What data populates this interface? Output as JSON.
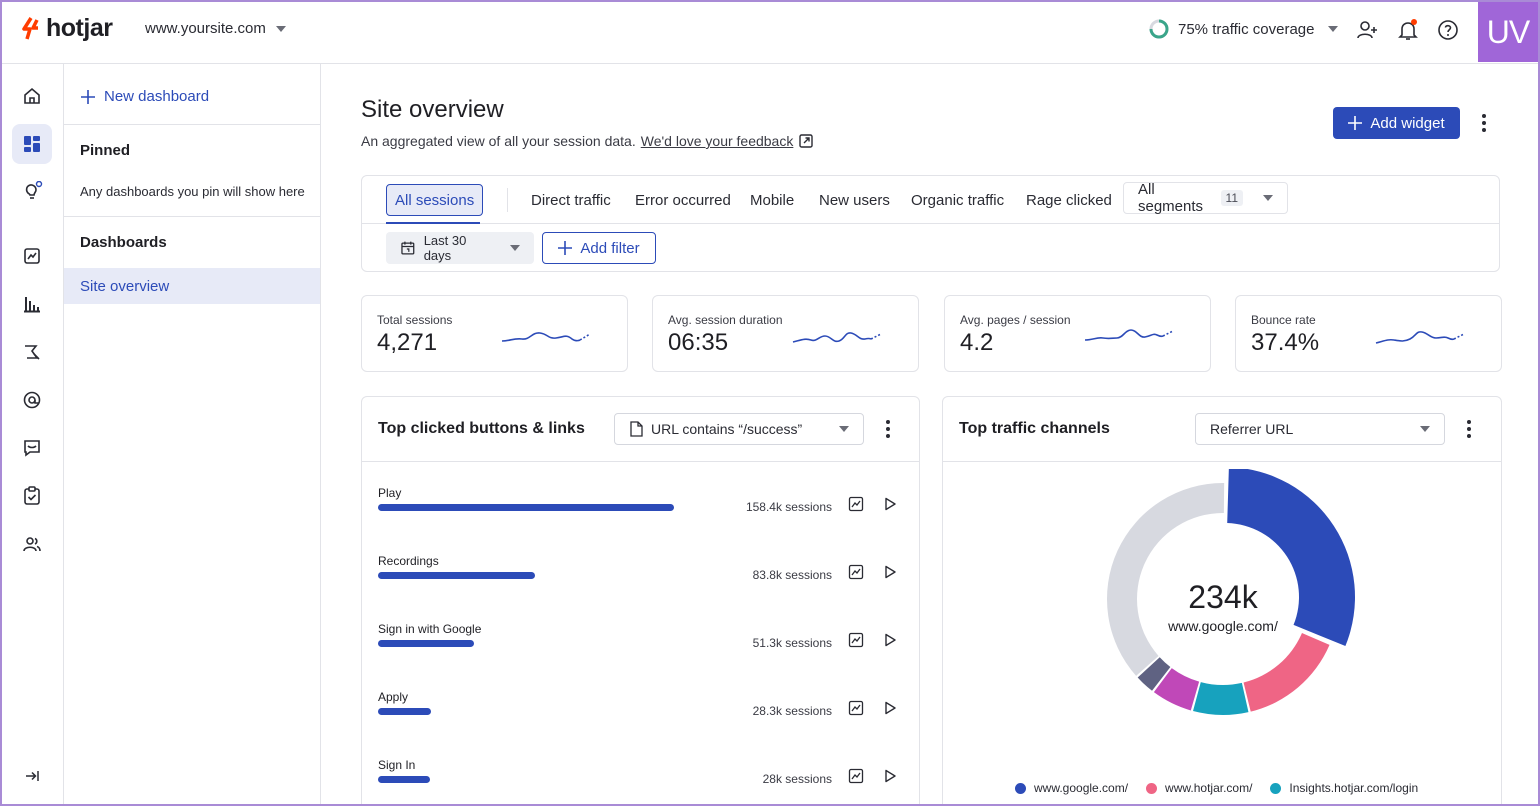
{
  "header": {
    "logo_text": "hotjar",
    "site": "www.yoursite.com",
    "coverage": "75% traffic coverage",
    "avatar": "UV",
    "icons": [
      "add-user-icon",
      "bell-icon",
      "help-icon"
    ],
    "colors": {
      "logo": "#ff3c00",
      "avatar_bg": "#a066d8",
      "notification": "#ff3c00"
    }
  },
  "rail": {
    "icons": [
      "home-icon",
      "dashboard-icon",
      "lightbulb-icon",
      "trends-icon",
      "funnels-icon",
      "heatmaps-icon",
      "recordings-icon",
      "feedback-icon",
      "surveys-icon",
      "users-icon",
      "collapse-icon"
    ]
  },
  "sidebar": {
    "new_dashboard": "New dashboard",
    "pinned_title": "Pinned",
    "pinned_note": "Any dashboards you pin will show here",
    "dashboards_title": "Dashboards",
    "active_item": "Site overview"
  },
  "main": {
    "title": "Site overview",
    "subtitle": "An aggregated view of all your session data.",
    "feedback_link": "We'd love your feedback",
    "add_widget": "Add widget",
    "accent": "#2c4bb8"
  },
  "segments": {
    "items": [
      "All sessions",
      "Direct traffic",
      "Error occurred",
      "Mobile",
      "New users",
      "Organic traffic",
      "Rage clicked"
    ],
    "active": "All sessions",
    "all_segments": "All segments",
    "all_segments_count": "11",
    "date_range": "Last 30 days",
    "add_filter": "Add filter"
  },
  "metrics": [
    {
      "label": "Total sessions",
      "value": "4,271"
    },
    {
      "label": "Avg. session duration",
      "value": "06:35"
    },
    {
      "label": "Avg. pages / session",
      "value": "4.2"
    },
    {
      "label": "Bounce rate",
      "value": "37.4%"
    }
  ],
  "top_clicked": {
    "title": "Top clicked buttons & links",
    "filter": "URL contains “/success”",
    "rows": [
      {
        "label": "Play",
        "sessions": "158.4k sessions",
        "value": 158.4
      },
      {
        "label": "Recordings",
        "sessions": "83.8k sessions",
        "value": 83.8
      },
      {
        "label": "Sign in with Google",
        "sessions": "51.3k sessions",
        "value": 51.3
      },
      {
        "label": "Apply",
        "sessions": "28.3k sessions",
        "value": 28.3
      },
      {
        "label": "Sign In",
        "sessions": "28k sessions",
        "value": 28
      }
    ]
  },
  "traffic": {
    "title": "Top traffic channels",
    "select": "Referrer URL",
    "center_value": "234k",
    "center_label": "www.google.com/",
    "legend": [
      {
        "label": "www.google.com/",
        "color": "#2c4bb8"
      },
      {
        "label": "www.hotjar.com/",
        "color": "#ef6585"
      },
      {
        "label": "Insights.hotjar.com/login",
        "color": "#17a2be"
      }
    ]
  },
  "chart_data": {
    "type": "pie",
    "categories": [
      "www.google.com/",
      "www.hotjar.com/",
      "Insights.hotjar.com/login",
      "",
      "",
      ""
    ],
    "values": [
      31,
      15,
      8,
      6,
      3,
      37
    ],
    "colors": [
      "#2c4bb8",
      "#ef6585",
      "#17a2be",
      "#c048b8",
      "#5f6282",
      "#d7d9e0"
    ],
    "title": "Top traffic channels",
    "legend_position": "bottom"
  }
}
